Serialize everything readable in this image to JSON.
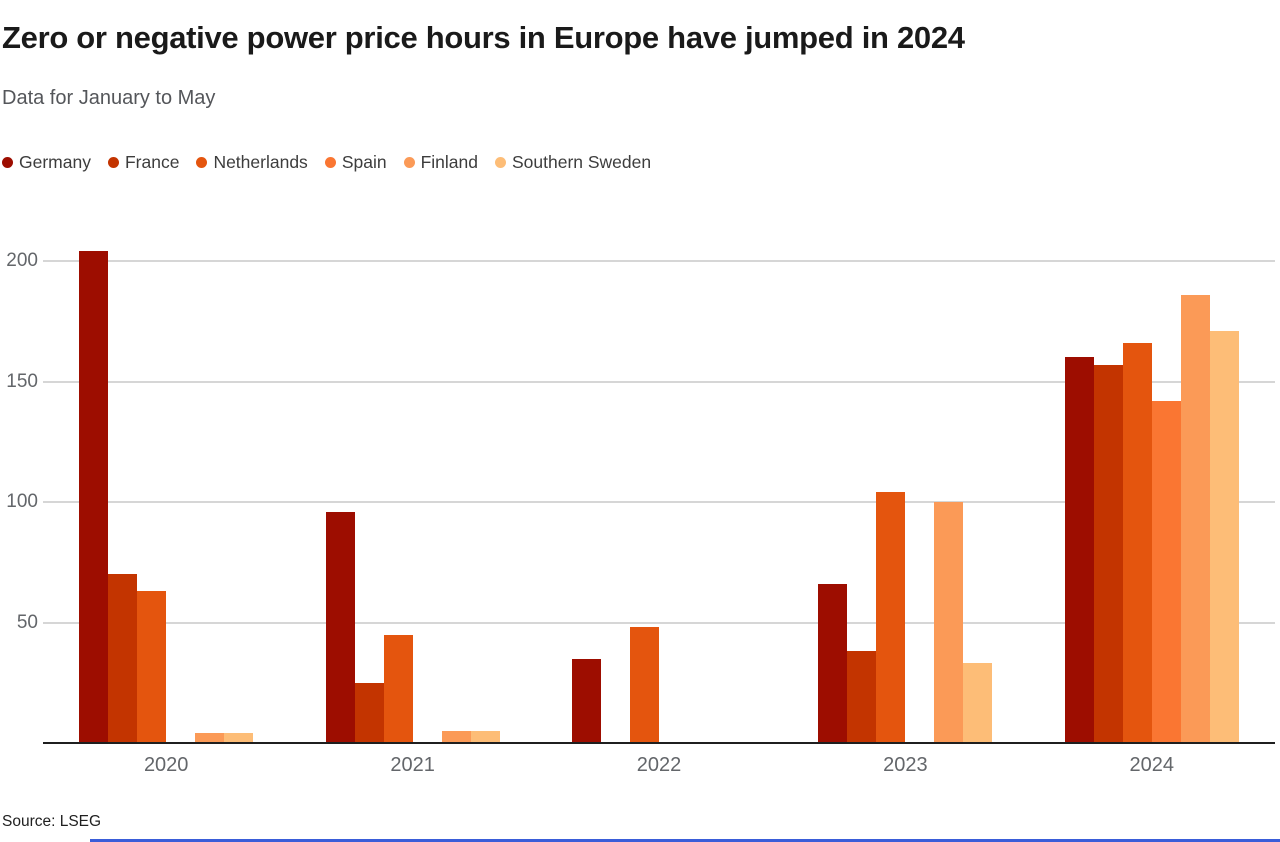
{
  "header": {
    "title": "Zero or negative power price hours in Europe have jumped in 2024",
    "subtitle": "Data for January to May"
  },
  "source": "Source: LSEG",
  "accent_color": "#3a5dd9",
  "chart_data": {
    "type": "bar",
    "title": "Zero or negative power price hours in Europe have jumped in 2024",
    "subtitle": "Data for January to May",
    "categories": [
      "2020",
      "2021",
      "2022",
      "2023",
      "2024"
    ],
    "series": [
      {
        "name": "Germany",
        "color": "#9d0d00",
        "values": [
          204,
          96,
          35,
          66,
          160
        ]
      },
      {
        "name": "France",
        "color": "#c33400",
        "values": [
          70,
          25,
          0,
          38,
          157
        ]
      },
      {
        "name": "Netherlands",
        "color": "#e4550e",
        "values": [
          63,
          45,
          48,
          104,
          166
        ]
      },
      {
        "name": "Spain",
        "color": "#fa7632",
        "values": [
          0,
          0,
          0,
          0,
          142
        ]
      },
      {
        "name": "Finland",
        "color": "#fb9a57",
        "values": [
          4,
          5,
          0,
          100,
          186
        ]
      },
      {
        "name": "Southern Sweden",
        "color": "#fdbd77",
        "values": [
          4,
          5,
          0,
          33,
          171
        ]
      }
    ],
    "xlabel": "",
    "ylabel": "",
    "ylim": [
      0,
      210
    ],
    "yticks": [
      50,
      100,
      150,
      200
    ],
    "grid": true,
    "legend_position": "top"
  }
}
